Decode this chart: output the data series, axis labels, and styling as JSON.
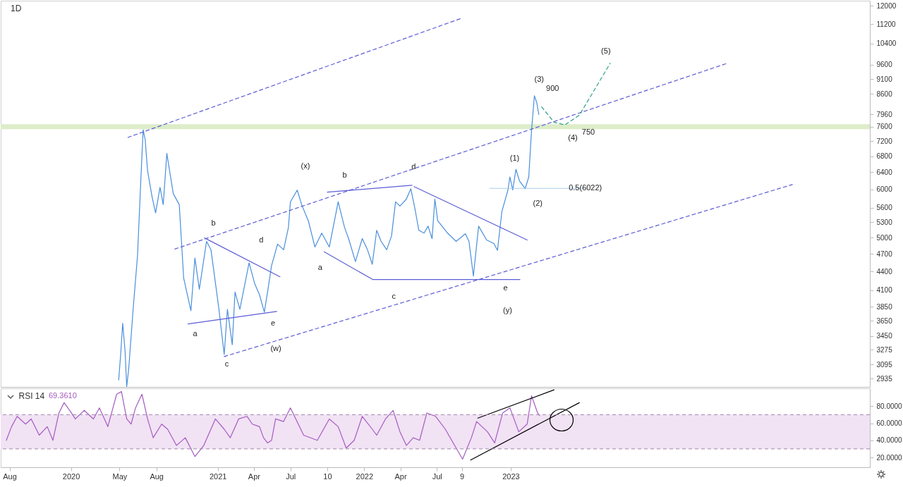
{
  "chart_data": [
    {
      "type": "line",
      "title": "1D",
      "log": true,
      "tick_labels": "y",
      "xlim": [
        "2019-07-10",
        "2025-06-14"
      ],
      "ylim": [
        2845,
        12230
      ],
      "yticks": [
        2935,
        3095,
        3275,
        3450,
        3650,
        3850,
        4100,
        4400,
        4700,
        5000,
        5300,
        5600,
        6000,
        6400,
        6800,
        7200,
        7600,
        7960,
        8600,
        9100,
        9600,
        10400,
        11200,
        12000
      ],
      "x": [
        "2020-04-29",
        "2020-05-04",
        "2020-05-09",
        "2020-05-15",
        "2020-05-19",
        "2020-05-24",
        "2020-06-04",
        "2020-06-15",
        "2020-06-23",
        "2020-06-29",
        "2020-07-04",
        "2020-07-10",
        "2020-07-21",
        "2020-07-30",
        "2020-08-10",
        "2020-08-18",
        "2020-08-27",
        "2020-09-12",
        "2020-09-27",
        "2020-10-08",
        "2020-10-26",
        "2020-11-05",
        "2020-11-16",
        "2020-12-04",
        "2020-12-15",
        "2021-01-03",
        "2021-01-17",
        "2021-01-25",
        "2021-02-06",
        "2021-02-13",
        "2021-02-25",
        "2021-03-20",
        "2021-04-03",
        "2021-04-15",
        "2021-04-27",
        "2021-05-05",
        "2021-05-15",
        "2021-05-30",
        "2021-06-14",
        "2021-06-26",
        "2021-07-01",
        "2021-07-18",
        "2021-07-29",
        "2021-08-15",
        "2021-08-31",
        "2021-09-17",
        "2021-10-06",
        "2021-10-28",
        "2021-11-13",
        "2021-11-23",
        "2021-12-10",
        "2021-12-27",
        "2022-01-09",
        "2022-01-21",
        "2022-02-01",
        "2022-02-12",
        "2022-02-26",
        "2022-03-10",
        "2022-03-20",
        "2022-03-31",
        "2022-04-16",
        "2022-04-27",
        "2022-05-08",
        "2022-05-17",
        "2022-05-30",
        "2022-06-09",
        "2022-06-19",
        "2022-06-26",
        "2022-07-03",
        "2022-07-26",
        "2022-08-18",
        "2022-09-10",
        "2022-09-19",
        "2022-09-30",
        "2022-10-13",
        "2022-11-02",
        "2022-11-20",
        "2022-11-29",
        "2022-12-10",
        "2022-12-25",
        "2022-12-30",
        "2023-01-06",
        "2023-01-14",
        "2023-01-23",
        "2023-02-06",
        "2023-02-15",
        "2023-02-22",
        "2023-03-01",
        "2023-03-07",
        "2023-03-12"
      ],
      "series": [
        {
          "color": "#4a8fdc",
          "values": [
            2920,
            3217,
            3619,
            3250,
            2850,
            3045,
            3813,
            4677,
            6173,
            7512,
            7242,
            6437,
            5843,
            5487,
            6045,
            5662,
            6872,
            5904,
            5662,
            4290,
            3793,
            4628,
            4114,
            4929,
            4776,
            3854,
            3217,
            3813,
            3337,
            4071,
            3813,
            4545,
            4201,
            4029,
            3774,
            4071,
            4497,
            4878,
            4776,
            5193,
            5722,
            5982,
            5662,
            5317,
            4826,
            5086,
            4826,
            5722,
            5193,
            4981,
            4568,
            4981,
            4776,
            4520,
            5140,
            4929,
            4776,
            5033,
            5722,
            5633,
            5782,
            6014,
            5545,
            5140,
            5086,
            5221,
            4981,
            5782,
            5331,
            5099,
            4929,
            5073,
            4929,
            4324,
            5221,
            4955,
            4890,
            4764,
            5516,
            5982,
            6287,
            5982,
            6470,
            6190,
            6014,
            6287,
            7512,
            8540,
            8320,
            7960
          ]
        },
        {
          "type": "line",
          "line_style": "dashed",
          "color": "#5c5cd6",
          "x": [
            "2020-05-22",
            "2022-09-01"
          ],
          "values": [
            7299,
            11449
          ]
        },
        {
          "type": "line",
          "line_style": "dashed",
          "color": "#5c5cd6",
          "x": [
            "2020-09-16",
            "2024-06-24"
          ],
          "values": [
            4788,
            9658
          ]
        },
        {
          "type": "line",
          "line_style": "dashed",
          "color": "#5c5cd6",
          "x": [
            "2021-01-17",
            "2024-12-03"
          ],
          "values": [
            3191,
            6109
          ]
        },
        {
          "type": "line",
          "line_style": "solid",
          "color": "#5c5cd6",
          "x": [
            "2020-11-29",
            "2021-06-05"
          ],
          "values": [
            4993,
            4312
          ]
        },
        {
          "type": "line",
          "line_style": "solid",
          "color": "#5c5cd6",
          "x": [
            "2020-10-19",
            "2021-05-28"
          ],
          "values": [
            3609,
            3783
          ]
        },
        {
          "type": "line",
          "line_style": "solid",
          "color": "#5c5cd6",
          "x": [
            "2021-10-01",
            "2022-04-30"
          ],
          "values": [
            5935,
            6093
          ]
        },
        {
          "type": "line",
          "line_style": "solid",
          "color": "#5c5cd6",
          "x": [
            "2022-05-05",
            "2023-02-11"
          ],
          "values": [
            6061,
            4955
          ]
        },
        {
          "type": "line",
          "line_style": "solid",
          "color": "#5c5cd6",
          "x": [
            "2021-09-23",
            "2022-01-22",
            "2023-01-24"
          ],
          "values": [
            4739,
            4268,
            4268
          ]
        },
        {
          "type": "line",
          "line_style": "solid",
          "color": "#a9cdee",
          "x": [
            "2022-11-10",
            "2023-07-01"
          ],
          "values": [
            6022,
            6022
          ]
        },
        {
          "type": "line",
          "line_style": "dashed",
          "color": "#2e9e8a",
          "x": [
            "2023-03-19",
            "2023-04-19",
            "2023-05-16",
            "2023-06-21",
            "2023-09-06"
          ],
          "values": [
            8190,
            7732,
            7650,
            7937,
            9658
          ]
        }
      ],
      "bands": [
        {
          "axis": "y",
          "from": 7530,
          "to": 7670,
          "color": "#dcedc8"
        }
      ],
      "annotations": [
        "a",
        "b",
        "c",
        "d",
        "e",
        "(w)",
        "(x)",
        "a",
        "b",
        "c",
        {
          "text": "d",
          "x": "2022-05-04",
          "y": 6521
        },
        "e",
        "(y)",
        "(1)",
        "(2)",
        "(3)",
        "900",
        "(4)",
        "750",
        "(5)",
        {
          "text": "0.5(6022)",
          "x": "2023-07-06",
          "y": 6022
        }
      ]
    },
    {
      "type": "line",
      "title": "RSI 14",
      "annotations": [
        "69.3610"
      ],
      "xlim": [
        "2019-07-10",
        "2025-06-14"
      ],
      "ylim": [
        8.5,
        100.8
      ],
      "xticks": [
        {
          "value": "2019-08-01",
          "label": "Aug"
        },
        {
          "value": "2020-01-01",
          "label": "2020"
        },
        {
          "value": "2020-05-01",
          "label": "May"
        },
        {
          "value": "2020-08-01",
          "label": "Aug"
        },
        {
          "value": "2021-01-01",
          "label": "2021"
        },
        {
          "value": "2021-04-01",
          "label": "Apr"
        },
        {
          "value": "2021-07-01",
          "label": "Jul"
        },
        {
          "value": "2021-10-01",
          "label": "10"
        },
        {
          "value": "2022-01-01",
          "label": "2022"
        },
        {
          "value": "2022-04-01",
          "label": "Apr"
        },
        {
          "value": "2022-07-01",
          "label": "Jul"
        },
        {
          "value": "2022-09-01",
          "label": "9"
        },
        {
          "value": "2023-01-01",
          "label": "2023"
        }
      ],
      "yticks": [
        {
          "value": 20,
          "label": "20.0000"
        },
        {
          "value": 40,
          "label": "40.0000"
        },
        {
          "value": 60,
          "label": "60.0000"
        },
        {
          "value": 80,
          "label": "80.0000"
        }
      ],
      "x": [
        "2019-07-24",
        "2019-08-06",
        "2019-08-20",
        "2019-09-10",
        "2019-09-24",
        "2019-10-14",
        "2019-11-03",
        "2019-11-17",
        "2019-12-02",
        "2019-12-15",
        "2019-12-29",
        "2020-01-12",
        "2020-02-03",
        "2020-02-26",
        "2020-03-12",
        "2020-04-02",
        "2020-04-24",
        "2020-05-06",
        "2020-05-19",
        "2020-05-30",
        "2020-06-10",
        "2020-06-26",
        "2020-07-10",
        "2020-07-24",
        "2020-08-14",
        "2020-08-29",
        "2020-09-20",
        "2020-10-12",
        "2020-11-05",
        "2020-11-27",
        "2020-12-26",
        "2021-01-17",
        "2021-02-01",
        "2021-02-22",
        "2021-03-15",
        "2021-03-28",
        "2021-04-15",
        "2021-04-25",
        "2021-05-05",
        "2021-05-15",
        "2021-05-25",
        "2021-06-14",
        "2021-07-01",
        "2021-08-03",
        "2021-09-06",
        "2021-10-06",
        "2021-10-28",
        "2021-11-17",
        "2021-12-07",
        "2021-12-27",
        "2022-01-21",
        "2022-02-01",
        "2022-02-23",
        "2022-03-14",
        "2022-03-31",
        "2022-04-16",
        "2022-05-03",
        "2022-05-19",
        "2022-06-06",
        "2022-06-28",
        "2022-07-22",
        "2022-09-03",
        "2022-09-25",
        "2022-10-08",
        "2022-11-04",
        "2022-11-22",
        "2022-12-12",
        "2022-12-30",
        "2023-01-21",
        "2023-02-11",
        "2023-02-22",
        "2023-03-09",
        "2023-03-14"
      ],
      "series": [
        {
          "color": "#a55cc0",
          "values": [
            40,
            56,
            68,
            59,
            65,
            46,
            56,
            40,
            72,
            84,
            75,
            65,
            75,
            65,
            78,
            56,
            94,
            97,
            65,
            59,
            78,
            94,
            65,
            43,
            59,
            53,
            34,
            43,
            21,
            34,
            65,
            53,
            43,
            65,
            68,
            59,
            56,
            43,
            37,
            40,
            65,
            62,
            78,
            46,
            40,
            65,
            56,
            31,
            40,
            68,
            53,
            46,
            65,
            75,
            50,
            34,
            43,
            40,
            72,
            68,
            53,
            18,
            43,
            62,
            50,
            37,
            72,
            78,
            50,
            59,
            92,
            72,
            69
          ]
        },
        {
          "type": "line",
          "line_style": "solid",
          "color": "#000000",
          "x": [
            "2022-10-11",
            "2023-04-19"
          ],
          "values": [
            66,
            99
          ]
        },
        {
          "type": "line",
          "line_style": "solid",
          "color": "#000000",
          "x": [
            "2022-09-23",
            "2023-06-21"
          ],
          "values": [
            17,
            84
          ]
        }
      ],
      "bands": [
        {
          "axis": "y",
          "from": 30,
          "to": 70,
          "color": "#f1e2f4"
        }
      ],
      "ref_lines": [
        {
          "axis": "y",
          "value": 70,
          "color": "#9e8aa8",
          "line_style": "dashed"
        },
        {
          "axis": "y",
          "value": 30,
          "color": "#9e8aa8",
          "line_style": "dashed"
        }
      ]
    }
  ]
}
